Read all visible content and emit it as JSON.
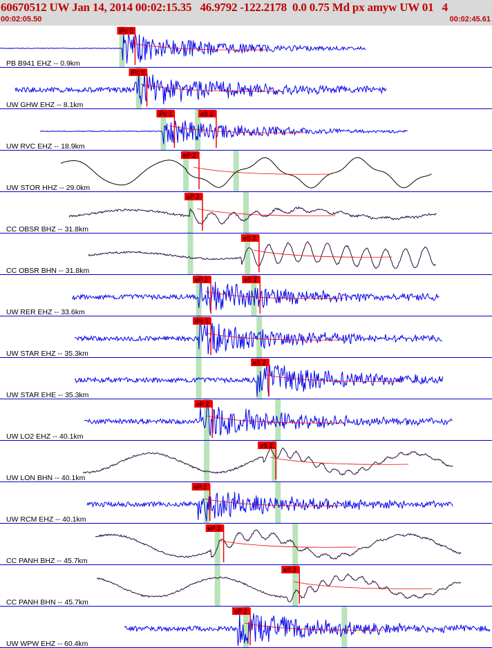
{
  "header": {
    "title": "60670512 UW Jan 14, 2014 00:02:15.35   46.9792 -122.2178  0.0 0.75 Md px amyw UW 01   4",
    "start_time": "00:02:05.50",
    "end_time": "00:02:45.61"
  },
  "colors": {
    "header_bg": "#d9d9d9",
    "header_text": "#c00000",
    "trace_blue": "#0000ee",
    "trace_black": "#000000",
    "trace_purple": "#2a0a3a",
    "pick_red": "#ee0000",
    "pick_window_green": "#b9e3b9",
    "separator": "#0000cc"
  },
  "traces": [
    {
      "label": "PB B941 EHZ -- 0.9km",
      "color": "blue",
      "kind": "short",
      "picks": [
        {
          "text": "iPc 0",
          "t": 0.238
        }
      ],
      "s_mark": "",
      "green": [
        0.248
      ]
    },
    {
      "label": "UW GHW EHZ -- 8.1km",
      "color": "blue",
      "kind": "noise",
      "picks": [
        {
          "text": "iPc 0",
          "t": 0.262
        }
      ],
      "s_mark": "",
      "green": [
        0.282
      ]
    },
    {
      "label": "UW RVC EHZ -- 18.9km",
      "color": "blue",
      "kind": "medium",
      "picks": [
        {
          "text": "iPc 1",
          "t": 0.318
        },
        {
          "text": "eS 2",
          "t": 0.403
        }
      ],
      "s_mark": "",
      "green": [
        0.332,
        0.402
      ]
    },
    {
      "label": "UW STOR HHZ -- 29.0km",
      "color": "black",
      "kind": "slow",
      "picks": [
        {
          "text": "eP 2",
          "t": 0.368
        }
      ],
      "s_mark": "",
      "green": [
        0.378,
        0.48
      ]
    },
    {
      "label": "CC OBSR BHZ -- 31.8km",
      "color": "purple",
      "kind": "mixed",
      "picks": [
        {
          "text": "eP 2",
          "t": 0.375
        }
      ],
      "s_mark": "",
      "green": [
        0.387,
        0.5
      ]
    },
    {
      "label": "CC OBSR BHN -- 31.8km",
      "color": "purple",
      "kind": "mixed2",
      "picks": [
        {
          "text": "eS 2",
          "t": 0.49
        }
      ],
      "s_mark": "",
      "green": [
        0.387,
        0.503
      ]
    },
    {
      "label": "UW RER EHZ -- 33.6km",
      "color": "blue",
      "kind": "noise",
      "picks": [
        {
          "text": "eP 2",
          "t": 0.392
        },
        {
          "text": "eS 2",
          "t": 0.492
        }
      ],
      "s_mark": "",
      "green": [
        0.404,
        0.516
      ]
    },
    {
      "label": "UW STAR EHZ -- 35.3km",
      "color": "blue",
      "kind": "noise",
      "picks": [
        {
          "text": "iPc 1",
          "t": 0.392
        }
      ],
      "s_mark": "",
      "green": [
        0.404,
        0.527
      ]
    },
    {
      "label": "UW STAR EHE -- 35.3km",
      "color": "blue",
      "kind": "noise",
      "picks": [
        {
          "text": "eS 2",
          "t": 0.51
        }
      ],
      "s_mark": "",
      "green": [
        0.404,
        0.527
      ]
    },
    {
      "label": "UW LO2 EHZ -- 40.1km",
      "color": "blue",
      "kind": "noise",
      "picks": [
        {
          "text": "eP 2",
          "t": 0.395
        }
      ],
      "s_mark": "",
      "green": [
        0.42,
        0.565
      ]
    },
    {
      "label": "UW LON BHN -- 40.1km",
      "color": "purple",
      "kind": "slow2",
      "picks": [
        {
          "text": "eS 2",
          "t": 0.524
        }
      ],
      "s_mark": "",
      "green": [
        0.42,
        0.558
      ]
    },
    {
      "label": "UW RCM EHZ -- 40.1km",
      "color": "blue",
      "kind": "noise",
      "picks": [
        {
          "text": "eP 2",
          "t": 0.39
        }
      ],
      "s_mark": "",
      "green": [
        0.42,
        0.565
      ]
    },
    {
      "label": "CC PANH BHZ -- 45.7km",
      "color": "purple",
      "kind": "slow3",
      "picks": [
        {
          "text": "eP 2",
          "t": 0.418
        }
      ],
      "s_mark": "",
      "green": [
        0.442,
        0.6
      ]
    },
    {
      "label": "CC PANH BHN -- 45.7km",
      "color": "purple",
      "kind": "slow2",
      "picks": [
        {
          "text": "eS 2",
          "t": 0.572
        }
      ],
      "s_mark": "",
      "green": [
        0.442,
        0.6
      ]
    },
    {
      "label": "UW WPW EHZ -- 60.4km",
      "color": "blue",
      "kind": "noise",
      "picks": [
        {
          "text": "eP 2",
          "t": 0.472
        }
      ],
      "s_mark": "",
      "green": [
        0.5,
        0.7
      ]
    }
  ]
}
